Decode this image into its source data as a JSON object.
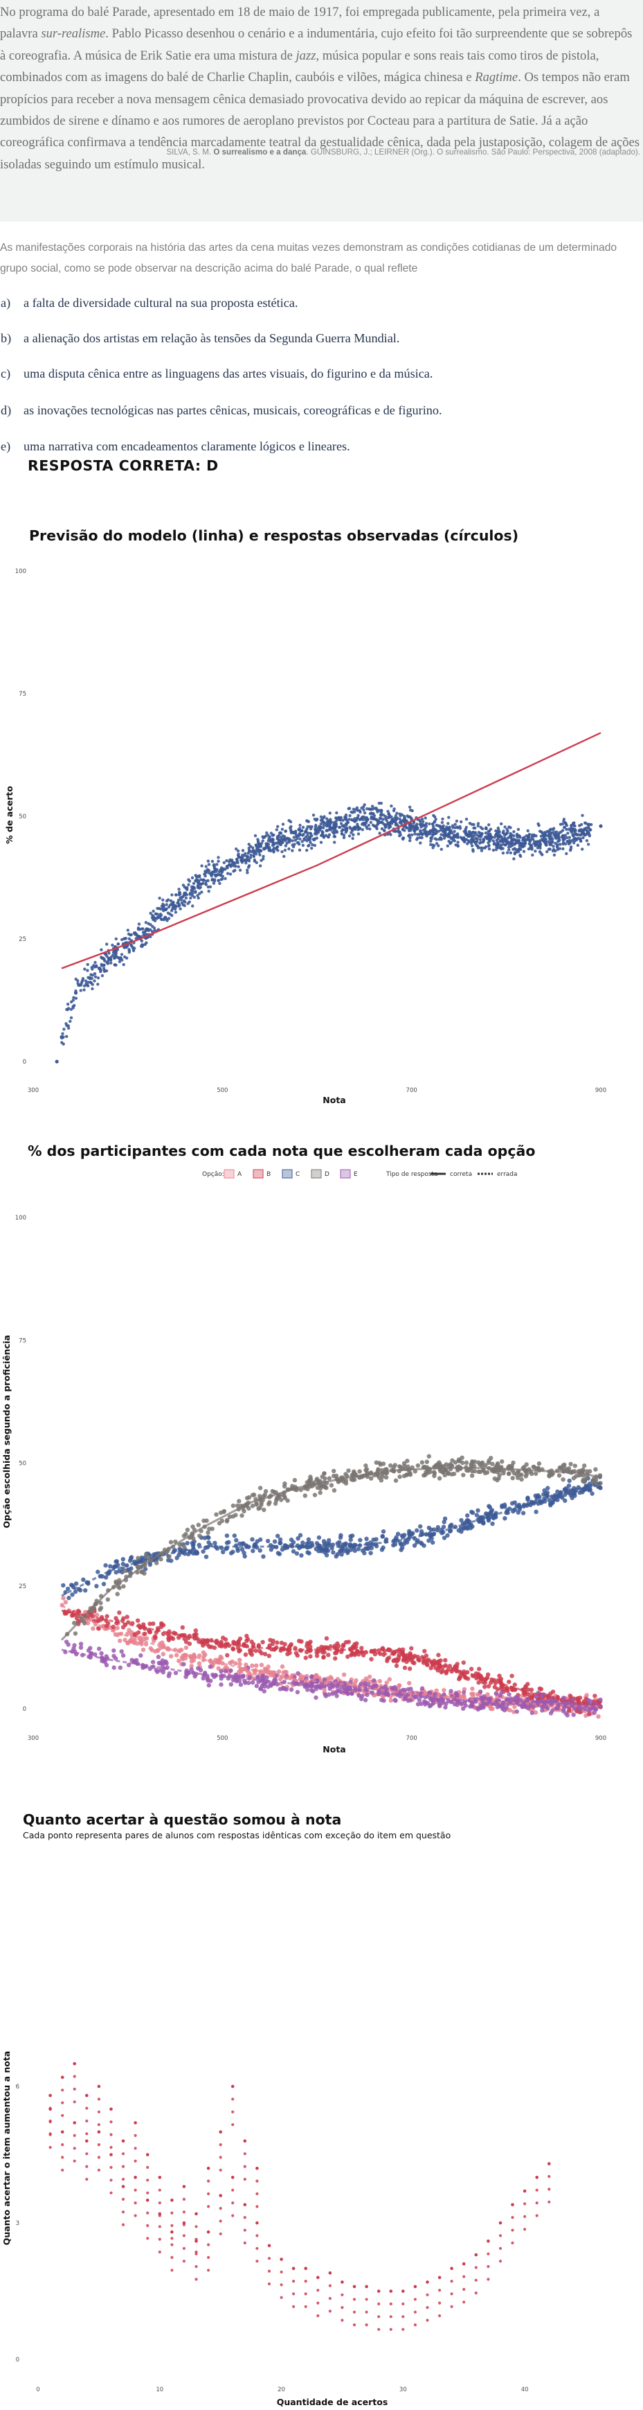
{
  "passage": {
    "seg1": "No programa do balé Parade, apresentado em 18 de maio de 1917, foi empregada publicamente, pela primeira vez, a palavra ",
    "seg2": "sur-realisme",
    "seg3": ". Pablo Picasso desenhou o cenário e a indumentária, cujo efeito foi tão surpreendente que se sobrepôs à coreografia. A música de Erik Satie era uma mistura de ",
    "seg4": "jazz",
    "seg5": ", música popular e sons reais tais como tiros de pistola, combinados com as imagens do balé de Charlie Chaplin, caubóis e vilões, mágica chinesa e ",
    "seg6": "Ragtime",
    "seg7": ". Os tempos não eram propícios para receber a nova mensagem cênica demasiado provocativa devido ao repicar da máquina de escrever, aos zumbidos de sirene e dínamo e aos rumores de aeroplano previstos por Cocteau para a partitura de Satie. Já a ação coreográfica confirmava a tendência marcadamente teatral da gestualidade cênica, dada pela justaposição, colagem de ações isoladas seguindo um estímulo musical."
  },
  "citation": {
    "pre": "SILVA, S. M. ",
    "bold": "O surrealismo e a dança",
    "post": ". GUINSBURG, J.; LEIRNER (Org.). O surrealismo. São Paulo: Perspectiva, 2008 (adaptado)."
  },
  "question": "As manifestações corporais na história das artes da cena muitas vezes demonstram as condições cotidianas de um determinado grupo social, como se pode observar na descrição acima do balé Parade, o qual reflete",
  "options": [
    {
      "letter": "a)",
      "text": "a falta de diversidade cultural na sua proposta estética."
    },
    {
      "letter": "b)",
      "text": "a alienação dos artistas em relação às tensões da Segunda Guerra Mundial."
    },
    {
      "letter": "c)",
      "text": "uma disputa cênica entre as linguagens das artes visuais, do figurino e da música."
    },
    {
      "letter": "d)",
      "text": "as inovações tecnológicas nas partes cênicas, musicais, coreográficas e de figurino."
    },
    {
      "letter": "e)",
      "text": "uma narrativa com encadeamentos claramente lógicos e lineares."
    }
  ],
  "answer_label": "RESPOSTA CORRETA: D",
  "chart_data": [
    {
      "type": "scatter",
      "title": "Previsão do modelo (linha) e respostas observadas (círculos)",
      "xlabel": "Nota",
      "ylabel": "% de acerto",
      "xlim": [
        300,
        900
      ],
      "ylim": [
        0,
        100
      ],
      "xticks": [
        "300",
        "500",
        "700",
        "900"
      ],
      "yticks": [
        "0",
        "25",
        "50",
        "75",
        "100"
      ],
      "grid": false,
      "colors": {
        "points": "#3d5a96",
        "line": "#cc3c4e"
      },
      "series": [
        {
          "kind": "points",
          "x": [
            325,
            330,
            345,
            360,
            370,
            380,
            400,
            420,
            440,
            460,
            480,
            500,
            520,
            540,
            560,
            580,
            600,
            620,
            640,
            660,
            680,
            700,
            720,
            740,
            760,
            780,
            800,
            820,
            840,
            860,
            880,
            900
          ],
          "y": [
            0,
            5,
            14,
            17,
            19,
            21,
            24,
            27,
            31,
            34,
            37,
            39,
            41,
            43,
            45,
            46,
            47,
            48,
            49,
            49.5,
            49,
            48,
            47,
            46.5,
            46,
            45.5,
            45,
            44.5,
            45,
            46,
            47,
            48
          ]
        },
        {
          "kind": "line",
          "x": [
            330,
            400,
            500,
            600,
            700,
            800,
            900
          ],
          "y": [
            19,
            24,
            32,
            40,
            49,
            58,
            67
          ]
        }
      ]
    },
    {
      "type": "scatter",
      "title": "% dos participantes com cada nota que escolheram cada opção",
      "xlabel": "Nota",
      "ylabel": "Opção escolhida segundo a proficiência",
      "xlim": [
        300,
        900
      ],
      "ylim": [
        0,
        100
      ],
      "xticks": [
        "300",
        "500",
        "700",
        "900"
      ],
      "yticks": [
        "0",
        "25",
        "50",
        "75",
        "100"
      ],
      "legend": {
        "title": "Opção:",
        "items": [
          "A",
          "B",
          "C",
          "D",
          "E"
        ],
        "type_title": "Tipo de resposta",
        "type_items": [
          "correta",
          "errada"
        ]
      },
      "colors": {
        "A": "#e8828f",
        "B": "#cc3c4e",
        "C": "#3d5a96",
        "D": "#7a7572",
        "E": "#9b5bb0"
      },
      "series": [
        {
          "name": "A",
          "x": [
            330,
            380,
            430,
            480,
            530,
            580,
            630,
            680,
            730,
            780,
            830,
            880,
            900
          ],
          "y": [
            21,
            16,
            13,
            10,
            8,
            6,
            5,
            3.5,
            2.5,
            1.5,
            1,
            0.5,
            0.5
          ]
        },
        {
          "name": "B",
          "x": [
            330,
            380,
            430,
            480,
            530,
            580,
            630,
            680,
            730,
            780,
            830,
            880,
            900
          ],
          "y": [
            20,
            18,
            16,
            14,
            12.5,
            12,
            12,
            11,
            9,
            6,
            3,
            1,
            1
          ]
        },
        {
          "name": "C",
          "x": [
            330,
            380,
            430,
            480,
            530,
            580,
            630,
            680,
            730,
            780,
            830,
            880,
            900
          ],
          "y": [
            23,
            28,
            31,
            33,
            33,
            33,
            33,
            34,
            36,
            39,
            42,
            45,
            46
          ]
        },
        {
          "name": "D",
          "x": [
            330,
            380,
            430,
            480,
            530,
            580,
            630,
            680,
            730,
            780,
            830,
            880,
            900
          ],
          "y": [
            14,
            24,
            31,
            37,
            42,
            45,
            47,
            48.5,
            49,
            49,
            48.5,
            48,
            47
          ]
        },
        {
          "name": "E",
          "x": [
            330,
            380,
            430,
            480,
            530,
            580,
            630,
            680,
            730,
            780,
            830,
            880,
            900
          ],
          "y": [
            12,
            10,
            8.5,
            7,
            6,
            5,
            4,
            3,
            2,
            1.5,
            1,
            0.5,
            0.5
          ]
        }
      ]
    },
    {
      "type": "scatter",
      "title": "Quanto acertar à questão somou à nota",
      "subtitle": "Cada ponto representa pares de alunos com respostas idênticas com exceção do item em questão",
      "xlabel": "Quantidade de acertos",
      "ylabel": "Quanto acertar o item aumentou a nota",
      "xlim": [
        0,
        45
      ],
      "ylim": [
        0,
        9
      ],
      "xticks": [
        "0",
        "10",
        "20",
        "30",
        "40"
      ],
      "yticks": [
        "0",
        "3",
        "6"
      ],
      "colors": {
        "points": "#cc3c4e"
      },
      "points": [
        [
          1,
          5.5
        ],
        [
          1,
          5.8
        ],
        [
          2,
          5.0
        ],
        [
          2,
          6.2
        ],
        [
          3,
          6.5
        ],
        [
          3,
          5.2
        ],
        [
          4,
          5.8
        ],
        [
          4,
          4.8
        ],
        [
          5,
          6.0
        ],
        [
          5,
          5.0
        ],
        [
          6,
          4.5
        ],
        [
          6,
          5.5
        ],
        [
          7,
          4.8
        ],
        [
          7,
          3.8
        ],
        [
          8,
          5.2
        ],
        [
          8,
          4.0
        ],
        [
          9,
          4.5
        ],
        [
          9,
          3.5
        ],
        [
          10,
          4.0
        ],
        [
          10,
          3.2
        ],
        [
          11,
          3.5
        ],
        [
          11,
          2.8
        ],
        [
          12,
          3.8
        ],
        [
          12,
          3.0
        ],
        [
          13,
          3.2
        ],
        [
          13,
          2.6
        ],
        [
          14,
          4.2
        ],
        [
          14,
          2.8
        ],
        [
          15,
          5.0
        ],
        [
          15,
          3.6
        ],
        [
          16,
          6.0
        ],
        [
          16,
          4.0
        ],
        [
          17,
          4.8
        ],
        [
          17,
          3.4
        ],
        [
          18,
          4.2
        ],
        [
          18,
          3.0
        ],
        [
          19,
          2.5
        ],
        [
          20,
          2.2
        ],
        [
          21,
          2.0
        ],
        [
          22,
          2.0
        ],
        [
          23,
          1.8
        ],
        [
          24,
          1.9
        ],
        [
          25,
          1.7
        ],
        [
          26,
          1.6
        ],
        [
          27,
          1.6
        ],
        [
          28,
          1.5
        ],
        [
          29,
          1.5
        ],
        [
          30,
          1.5
        ],
        [
          31,
          1.6
        ],
        [
          32,
          1.7
        ],
        [
          33,
          1.8
        ],
        [
          34,
          2.0
        ],
        [
          35,
          2.1
        ],
        [
          36,
          2.3
        ],
        [
          37,
          2.6
        ],
        [
          38,
          3.0
        ],
        [
          39,
          3.4
        ],
        [
          40,
          3.7
        ],
        [
          41,
          4.0
        ],
        [
          42,
          4.3
        ]
      ]
    }
  ]
}
